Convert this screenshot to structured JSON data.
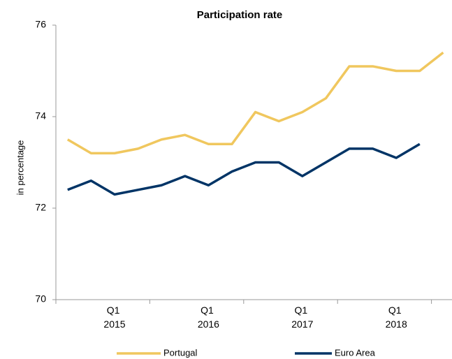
{
  "chart_data": {
    "type": "line",
    "title": "Participation rate",
    "y_label": "in percentage",
    "categories": [
      null,
      null,
      "Q1 2015",
      null,
      null,
      null,
      "Q1 2016",
      null,
      null,
      null,
      "Q1 2017",
      null,
      null,
      null,
      "Q1 2018",
      null,
      null
    ],
    "series": [
      {
        "name": "Portugal",
        "color": "#f0c75e",
        "values": [
          73.5,
          73.2,
          73.2,
          73.3,
          73.5,
          73.6,
          73.4,
          73.4,
          74.1,
          73.9,
          74.1,
          74.4,
          75.1,
          75.1,
          75.0,
          75.0,
          75.4
        ]
      },
      {
        "name": "Euro Area",
        "color": "#003466",
        "values": [
          72.4,
          72.6,
          72.3,
          72.4,
          72.5,
          72.7,
          72.5,
          72.8,
          73.0,
          73.0,
          72.7,
          73.0,
          73.3,
          73.3,
          73.1,
          73.4,
          null
        ]
      }
    ],
    "ylim": [
      70,
      76
    ],
    "yticks": [
      70,
      72,
      74,
      76
    ],
    "grid": false,
    "legend": "bottom"
  }
}
